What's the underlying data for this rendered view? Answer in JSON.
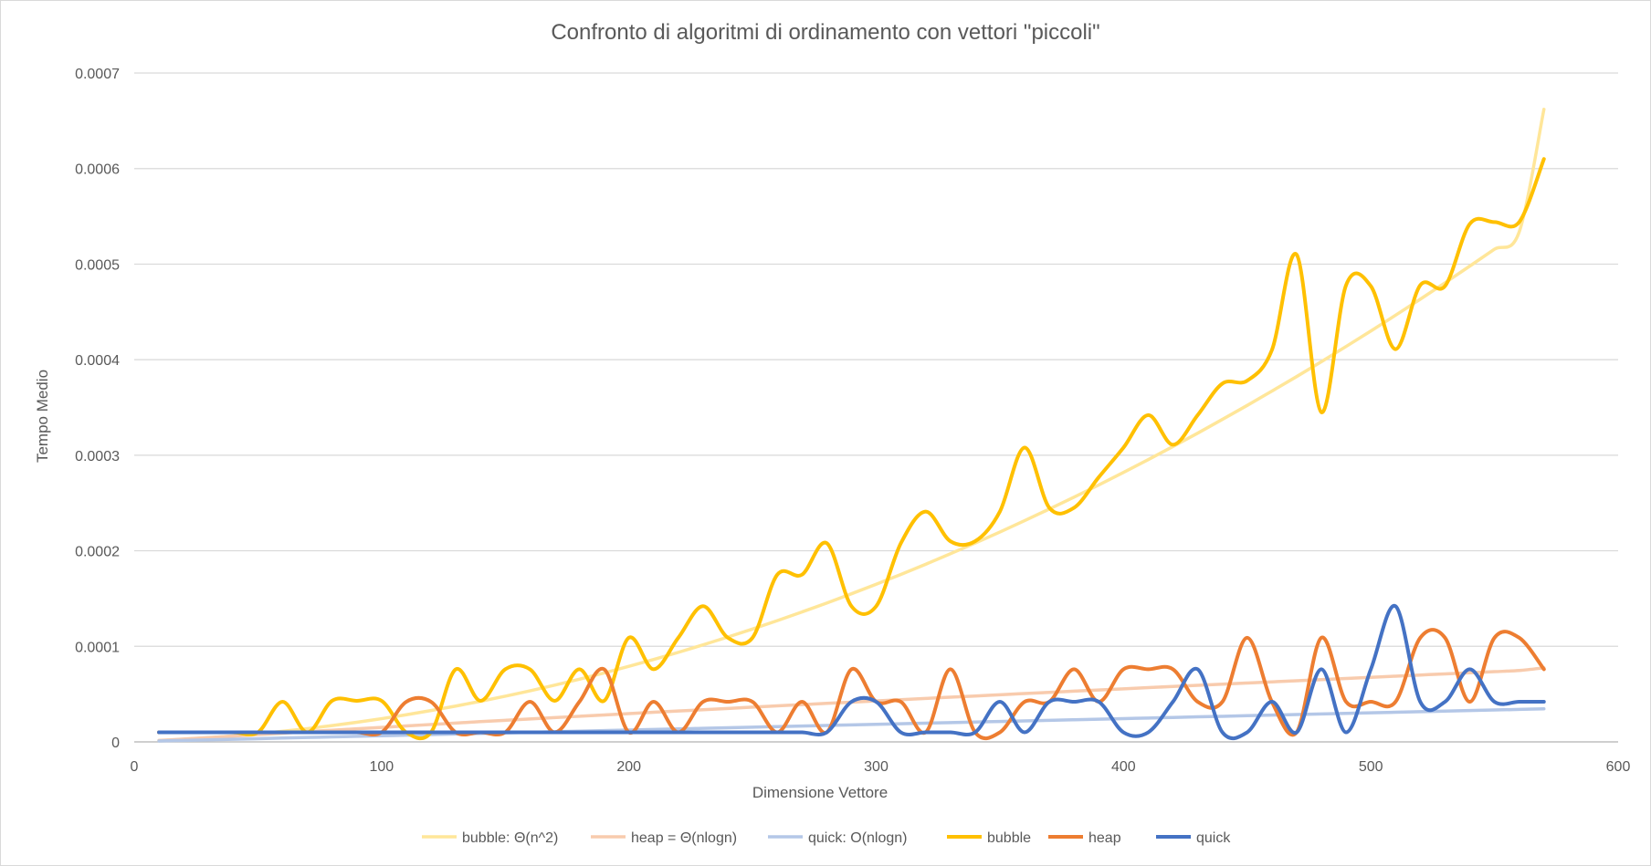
{
  "chart_data": {
    "type": "line",
    "title": "Confronto di algoritmi di ordinamento con vettori \"piccoli\"",
    "xlabel": "Dimensione Vettore",
    "ylabel": "Tempo Medio",
    "xlim": [
      0,
      600
    ],
    "ylim": [
      0,
      0.0007
    ],
    "x_ticks": [
      "0",
      "100",
      "200",
      "300",
      "400",
      "500",
      "600"
    ],
    "y_ticks": [
      "0",
      "0.0001",
      "0.0002",
      "0.0003",
      "0.0004",
      "0.0005",
      "0.0006",
      "0.0007"
    ],
    "grid": "horizontal",
    "legend_position": "bottom",
    "x": [
      10,
      20,
      30,
      40,
      50,
      60,
      70,
      80,
      90,
      100,
      110,
      120,
      130,
      140,
      150,
      160,
      170,
      180,
      190,
      200,
      210,
      220,
      230,
      240,
      250,
      260,
      270,
      280,
      290,
      300,
      310,
      320,
      330,
      340,
      350,
      360,
      370,
      380,
      390,
      400,
      410,
      420,
      430,
      440,
      450,
      460,
      470,
      480,
      490,
      500,
      510,
      520,
      530,
      540,
      550,
      560,
      570
    ],
    "series": [
      {
        "name": "bubble: Θ(n^2)",
        "color": "#ffe699",
        "style": "trend",
        "values": [
          1.3e-06,
          2.7e-06,
          4.3e-06,
          6.3e-06,
          8.5e-06,
          1.11e-05,
          1.39e-05,
          1.71e-05,
          2.05e-05,
          2.43e-05,
          2.84e-05,
          3.28e-05,
          3.75e-05,
          4.25e-05,
          4.78e-05,
          5.34e-05,
          5.94e-05,
          6.56e-05,
          7.22e-05,
          7.91e-05,
          8.63e-05,
          9.37e-05,
          0.0001016,
          0.0001097,
          0.0001181,
          0.0001269,
          0.000136,
          0.0001453,
          0.000155,
          0.000165,
          0.0001753,
          0.0001859,
          0.0001969,
          0.0002081,
          0.0002196,
          0.0002315,
          0.0002437,
          0.0002561,
          0.0002689,
          0.000282,
          0.0002954,
          0.0003091,
          0.0003231,
          0.0003375,
          0.0003521,
          0.0003671,
          0.0003823,
          0.0003979,
          0.0004138,
          0.00043,
          0.0004465,
          0.0004633,
          0.0004804,
          0.0004979,
          0.0005156,
          0.0005337,
          0.000662
        ]
      },
      {
        "name": "heap = Θ(nlogn)",
        "color": "#f8cbad",
        "style": "trend",
        "values": [
          1.5e-06,
          3e-06,
          4.5e-06,
          6e-06,
          7.6e-06,
          9.1e-06,
          1.07e-05,
          1.22e-05,
          1.37e-05,
          1.52e-05,
          1.67e-05,
          1.82e-05,
          1.97e-05,
          2.12e-05,
          2.26e-05,
          2.4e-05,
          2.54e-05,
          2.68e-05,
          2.82e-05,
          2.96e-05,
          3.1e-05,
          3.23e-05,
          3.37e-05,
          3.5e-05,
          3.64e-05,
          3.77e-05,
          3.9e-05,
          4.03e-05,
          4.16e-05,
          4.29e-05,
          4.42e-05,
          4.55e-05,
          4.68e-05,
          4.8e-05,
          4.93e-05,
          5.06e-05,
          5.18e-05,
          5.31e-05,
          5.43e-05,
          5.55e-05,
          5.68e-05,
          5.8e-05,
          5.92e-05,
          6.04e-05,
          6.16e-05,
          6.28e-05,
          6.4e-05,
          6.52e-05,
          6.64e-05,
          6.76e-05,
          6.88e-05,
          7e-05,
          7.12e-05,
          7.23e-05,
          7.35e-05,
          7.47e-05,
          7.75e-05
        ]
      },
      {
        "name": "quick: O(nlogn)",
        "color": "#b4c7e7",
        "style": "trend",
        "values": [
          1e-06,
          1.6e-06,
          2.2e-06,
          2.8e-06,
          3.4e-06,
          4e-06,
          4.6e-06,
          5.2e-06,
          5.8e-06,
          6.4e-06,
          7e-06,
          7.6e-06,
          8.2e-06,
          8.8e-06,
          9.4e-06,
          1e-05,
          1.06e-05,
          1.12e-05,
          1.18e-05,
          1.24e-05,
          1.3e-05,
          1.36e-05,
          1.42e-05,
          1.48e-05,
          1.54e-05,
          1.6e-05,
          1.66e-05,
          1.72e-05,
          1.78e-05,
          1.84e-05,
          1.9e-05,
          1.96e-05,
          2.02e-05,
          2.08e-05,
          2.14e-05,
          2.2e-05,
          2.26e-05,
          2.32e-05,
          2.38e-05,
          2.44e-05,
          2.5e-05,
          2.56e-05,
          2.62e-05,
          2.68e-05,
          2.74e-05,
          2.8e-05,
          2.86e-05,
          2.92e-05,
          2.98e-05,
          3.04e-05,
          3.1e-05,
          3.16e-05,
          3.22e-05,
          3.28e-05,
          3.34e-05,
          3.4e-05,
          3.46e-05
        ]
      },
      {
        "name": "bubble",
        "color": "#ffc000",
        "style": "data",
        "values": [
          1e-05,
          1e-05,
          1e-05,
          1e-05,
          1e-05,
          4.2e-05,
          1e-05,
          4.3e-05,
          4.3e-05,
          4.3e-05,
          1e-05,
          1e-05,
          7.6e-05,
          4.3e-05,
          7.6e-05,
          7.6e-05,
          4.3e-05,
          7.6e-05,
          4.3e-05,
          0.000109,
          7.6e-05,
          0.000109,
          0.000142,
          0.000109,
          0.000109,
          0.000175,
          0.000175,
          0.000208,
          0.000142,
          0.000142,
          0.000208,
          0.000241,
          0.00021,
          0.00021,
          0.000241,
          0.000308,
          0.000245,
          0.000245,
          0.000277,
          0.000308,
          0.000342,
          0.000311,
          0.000342,
          0.000375,
          0.000378,
          0.00041,
          0.00051,
          0.000345,
          0.000478,
          0.000477,
          0.000411,
          0.000478,
          0.000477,
          0.000542,
          0.000544,
          0.000544,
          0.00061
        ]
      },
      {
        "name": "heap",
        "color": "#ed7d31",
        "style": "data",
        "values": [
          1e-05,
          1e-05,
          1e-05,
          1e-05,
          1e-05,
          1e-05,
          1e-05,
          1e-05,
          1e-05,
          1e-05,
          4.2e-05,
          4.2e-05,
          1e-05,
          1e-05,
          1e-05,
          4.2e-05,
          1e-05,
          4.2e-05,
          7.6e-05,
          1e-05,
          4.2e-05,
          1e-05,
          4.2e-05,
          4.2e-05,
          4.2e-05,
          1e-05,
          4.2e-05,
          1e-05,
          7.6e-05,
          4.2e-05,
          4.2e-05,
          1e-05,
          7.6e-05,
          1e-05,
          1e-05,
          4.2e-05,
          4.2e-05,
          7.6e-05,
          4.2e-05,
          7.6e-05,
          7.6e-05,
          7.6e-05,
          4.2e-05,
          4.2e-05,
          0.000109,
          4.2e-05,
          1e-05,
          0.000109,
          4.2e-05,
          4.2e-05,
          4.2e-05,
          0.000109,
          0.000109,
          4.2e-05,
          0.000109,
          0.000109,
          7.6e-05
        ]
      },
      {
        "name": "quick",
        "color": "#4472c4",
        "style": "data",
        "values": [
          1e-05,
          1e-05,
          1e-05,
          1e-05,
          1e-05,
          1e-05,
          1e-05,
          1e-05,
          1e-05,
          1e-05,
          1e-05,
          1e-05,
          1e-05,
          1e-05,
          1e-05,
          1e-05,
          1e-05,
          1e-05,
          1e-05,
          1e-05,
          1e-05,
          1e-05,
          1e-05,
          1e-05,
          1e-05,
          1e-05,
          1e-05,
          1e-05,
          4.2e-05,
          4.2e-05,
          1e-05,
          1e-05,
          1e-05,
          1e-05,
          4.2e-05,
          1e-05,
          4.2e-05,
          4.2e-05,
          4.2e-05,
          1e-05,
          1e-05,
          4.2e-05,
          7.6e-05,
          1e-05,
          1e-05,
          4.2e-05,
          1e-05,
          7.6e-05,
          1e-05,
          7.6e-05,
          0.000142,
          4.2e-05,
          4.2e-05,
          7.6e-05,
          4.2e-05,
          4.2e-05,
          4.2e-05
        ]
      }
    ]
  }
}
